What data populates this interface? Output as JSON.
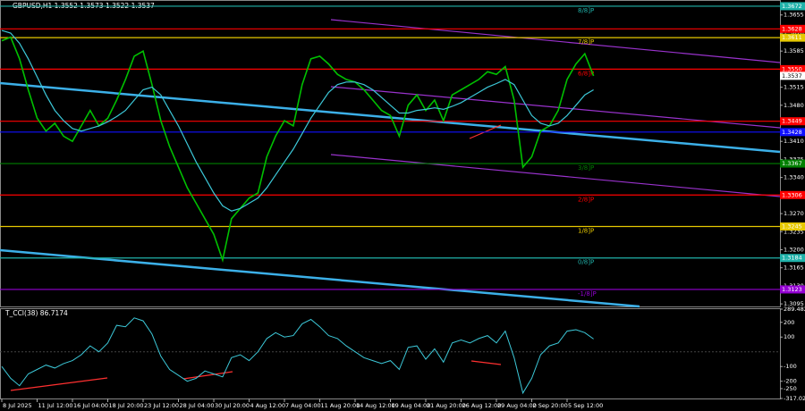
{
  "chart_data": [
    {
      "type": "line",
      "title": "GBPUSD,H1  1.3552 1.3573 1.3522 1.3537",
      "categories": [
        "8 Jul 2025",
        null,
        null,
        null,
        "11 Jul 12:00",
        null,
        null,
        null,
        "16 Jul 04:00",
        null,
        null,
        null,
        "18 Jul 20:00",
        null,
        null,
        null,
        "23 Jul 12:00",
        null,
        null,
        null,
        "28 Jul 04:00",
        null,
        null,
        null,
        "30 Jul 20:00",
        null,
        null,
        null,
        "4 Aug 12:00",
        null,
        null,
        null,
        "7 Aug 04:00",
        null,
        null,
        null,
        "11 Aug 20:00",
        null,
        null,
        null,
        "14 Aug 12:00",
        null,
        null,
        null,
        "19 Aug 04:00",
        null,
        null,
        null,
        "21 Aug 20:00",
        null,
        null,
        null,
        "26 Aug 12:00",
        null,
        null,
        null,
        "29 Aug 04:00",
        null,
        null,
        null,
        "2 Sep 20:00",
        null,
        null,
        null,
        "5 Sep 12:00",
        null,
        null,
        null
      ],
      "series": [
        {
          "color": "#00c000",
          "values": [
            1.3605,
            1.3612,
            1.357,
            1.351,
            1.3455,
            1.343,
            1.3445,
            1.342,
            1.341,
            1.344,
            1.347,
            1.344,
            1.3455,
            1.349,
            1.353,
            1.3575,
            1.3585,
            1.352,
            1.345,
            1.34,
            1.336,
            1.332,
            1.329,
            1.326,
            1.323,
            1.318,
            1.326,
            1.328,
            1.33,
            1.331,
            1.338,
            1.342,
            1.345,
            1.344,
            1.352,
            1.357,
            1.3575,
            1.356,
            1.354,
            1.353,
            1.3525,
            1.351,
            1.349,
            1.347,
            1.346,
            1.342,
            1.348,
            1.35,
            1.347,
            1.349,
            1.345,
            1.35,
            1.351,
            1.352,
            1.353,
            1.3545,
            1.354,
            1.3555,
            1.349,
            1.336,
            1.338,
            1.343,
            1.344,
            1.347,
            1.353,
            1.356,
            1.358,
            1.3537
          ]
        },
        {
          "color": "#3cc8d8",
          "values": [
            1.3625,
            1.362,
            1.36,
            1.357,
            1.3535,
            1.35,
            1.347,
            1.345,
            1.3435,
            1.343,
            1.3435,
            1.344,
            1.3448,
            1.3458,
            1.347,
            1.349,
            1.351,
            1.3515,
            1.35,
            1.347,
            1.344,
            1.3405,
            1.337,
            1.334,
            1.331,
            1.3285,
            1.3275,
            1.328,
            1.329,
            1.33,
            1.332,
            1.3345,
            1.337,
            1.3395,
            1.3425,
            1.3455,
            1.348,
            1.3505,
            1.352,
            1.3525,
            1.3525,
            1.352,
            1.351,
            1.3495,
            1.348,
            1.3465,
            1.3465,
            1.347,
            1.3472,
            1.3475,
            1.3472,
            1.3478,
            1.3485,
            1.3495,
            1.3505,
            1.3515,
            1.3522,
            1.353,
            1.352,
            1.349,
            1.346,
            1.3445,
            1.344,
            1.3445,
            1.346,
            1.348,
            1.35,
            1.351
          ]
        }
      ],
      "ylim": [
        1.309,
        1.3684
      ],
      "yticks": [
        {
          "value": 1.3655,
          "label": "1.3655"
        },
        {
          "value": 1.362,
          "label": "1.3620"
        },
        {
          "value": 1.3585,
          "label": "1.3585"
        },
        {
          "value": 1.3515,
          "label": "1.3515"
        },
        {
          "value": 1.348,
          "label": "1.3480"
        },
        {
          "value": 1.341,
          "label": "1.3410"
        },
        {
          "value": 1.3375,
          "label": "1.3375"
        },
        {
          "value": 1.334,
          "label": "1.3340"
        },
        {
          "value": 1.327,
          "label": "1.3270"
        },
        {
          "value": 1.3235,
          "label": "1.3235"
        },
        {
          "value": 1.32,
          "label": "1.3200"
        },
        {
          "value": 1.3165,
          "label": "1.3165"
        },
        {
          "value": 1.313,
          "label": "1.3130"
        },
        {
          "value": 1.3095,
          "label": "1.3095"
        }
      ],
      "levels": [
        {
          "value": 1.3672,
          "label": "1.3672",
          "color": "#20b2aa",
          "name": "8/8]P"
        },
        {
          "value": 1.3628,
          "label": "1.3628",
          "color": "#ff0000"
        },
        {
          "value": 1.3611,
          "label": "1.3611",
          "color": "#e6c800",
          "name": "7/8]P"
        },
        {
          "value": 1.355,
          "label": "1.3550",
          "color": "#ff0000",
          "name": "6/8]P"
        },
        {
          "value": 1.3449,
          "label": "1.3449",
          "color": "#ff0000"
        },
        {
          "value": 1.3428,
          "label": "1.3428",
          "color": "#1010ff"
        },
        {
          "value": 1.3367,
          "label": "1.3367",
          "color": "#008000",
          "name": "3/8]P"
        },
        {
          "value": 1.3306,
          "label": "1.3306",
          "color": "#ff0000",
          "name": "2/8]P"
        },
        {
          "value": 1.3245,
          "label": "1.3245",
          "color": "#e6c800",
          "name": "1/8]P"
        },
        {
          "value": 1.3184,
          "label": "1.3184",
          "color": "#20b2aa",
          "name": "0/8]P"
        },
        {
          "value": 1.3123,
          "label": "1.3123",
          "color": "#9400d3",
          "name": "-1/8]P"
        }
      ]
    },
    {
      "type": "line",
      "title": "T_CCI(38) 86.7174",
      "color": "#3cc8d8",
      "values": [
        -100,
        -180,
        -230,
        -150,
        -120,
        -90,
        -110,
        -80,
        -60,
        -20,
        40,
        0,
        60,
        180,
        170,
        230,
        210,
        120,
        -30,
        -120,
        -160,
        -200,
        -180,
        -130,
        -150,
        -170,
        -40,
        -20,
        -60,
        0,
        90,
        130,
        100,
        110,
        190,
        220,
        170,
        110,
        90,
        40,
        0,
        -40,
        -60,
        -80,
        -60,
        -120,
        30,
        40,
        -50,
        20,
        -70,
        60,
        80,
        60,
        90,
        110,
        60,
        140,
        -40,
        -280,
        -180,
        -20,
        40,
        60,
        140,
        150,
        130,
        87
      ],
      "ylim": [
        -317.0251,
        289.4823
      ],
      "yticks": [
        289.4823,
        200,
        100,
        -100,
        -200,
        -250,
        -317.0251
      ]
    }
  ]
}
